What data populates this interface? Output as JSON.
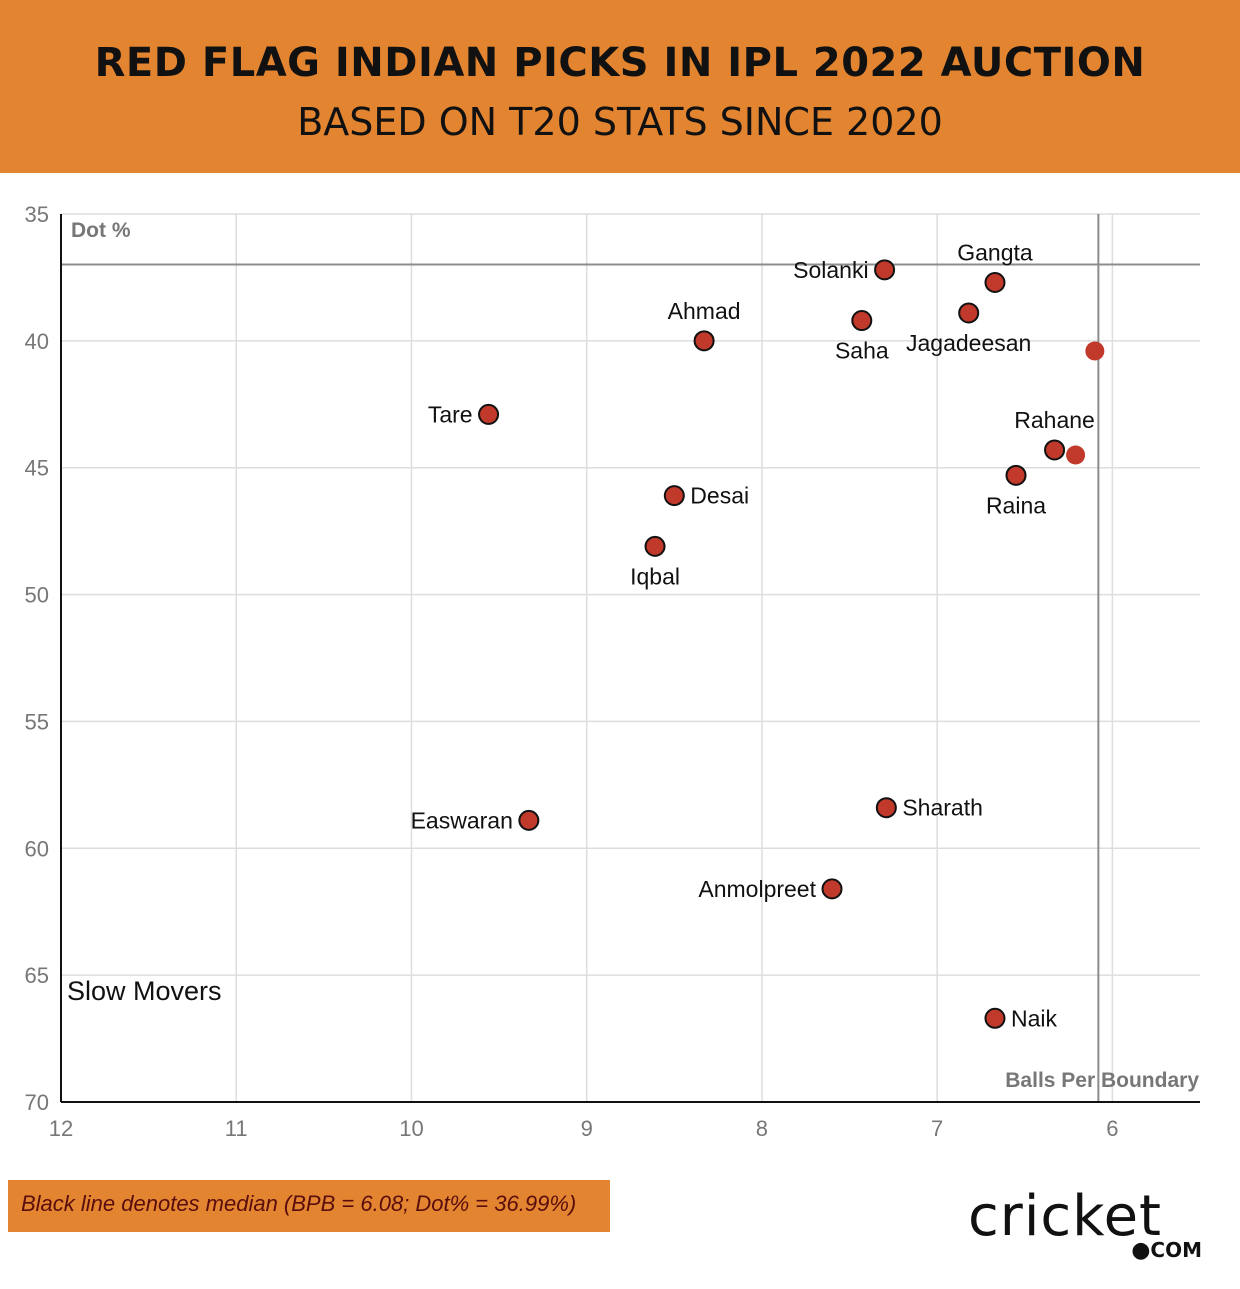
{
  "header": {
    "title": "RED FLAG INDIAN PICKS IN IPL 2022 AUCTION",
    "subtitle": "BASED ON T20 STATS SINCE 2020"
  },
  "footnote": "Black line denotes median (BPB = 6.08; Dot% = 36.99%)",
  "logo": {
    "word": "cricket",
    "suffix": "COM",
    "dot": "●"
  },
  "colors": {
    "header_bg": "#e38431",
    "point_fill": "#c0392b",
    "point_stroke": "#111111",
    "median_line": "#8c8c8c",
    "grid": "#dddddd"
  },
  "chart_data": {
    "type": "scatter",
    "x_axis": {
      "label": "Balls Per Boundary",
      "range": [
        12,
        5.5
      ],
      "reversed": true,
      "ticks": [
        "12",
        "11",
        "10",
        "9",
        "8",
        "7",
        "6"
      ],
      "tick_values": [
        12,
        11,
        10,
        9,
        8,
        7,
        6
      ]
    },
    "y_axis": {
      "label": "Dot %",
      "range": [
        35,
        70
      ],
      "reversed": true,
      "ticks": [
        "35",
        "40",
        "45",
        "50",
        "55",
        "60",
        "65",
        "70"
      ],
      "tick_values": [
        35,
        40,
        45,
        50,
        55,
        60,
        65,
        70
      ]
    },
    "grid": true,
    "median": {
      "bpb": 6.08,
      "dot": 36.99
    },
    "annotation": "Slow Movers",
    "points": [
      {
        "name": "Solanki",
        "x": 7.3,
        "y": 37.2,
        "label_pos": "left"
      },
      {
        "name": "Gangta",
        "x": 6.67,
        "y": 37.7,
        "label_pos": "above"
      },
      {
        "name": "Jagadeesan",
        "x": 6.82,
        "y": 38.9,
        "label_pos": "below"
      },
      {
        "name": "Saha",
        "x": 7.43,
        "y": 39.2,
        "label_pos": "below"
      },
      {
        "name": "Ahmad",
        "x": 8.33,
        "y": 40.0,
        "label_pos": "above"
      },
      {
        "name": "",
        "x": 6.1,
        "y": 40.4,
        "label_pos": "none"
      },
      {
        "name": "Tare",
        "x": 9.56,
        "y": 42.9,
        "label_pos": "left"
      },
      {
        "name": "Rahane",
        "x": 6.33,
        "y": 44.3,
        "label_pos": "above"
      },
      {
        "name": "",
        "x": 6.21,
        "y": 44.5,
        "label_pos": "none"
      },
      {
        "name": "Raina",
        "x": 6.55,
        "y": 45.3,
        "label_pos": "below"
      },
      {
        "name": "Desai",
        "x": 8.5,
        "y": 46.1,
        "label_pos": "right"
      },
      {
        "name": "Iqbal",
        "x": 8.61,
        "y": 48.1,
        "label_pos": "below"
      },
      {
        "name": "Sharath",
        "x": 7.29,
        "y": 58.4,
        "label_pos": "right"
      },
      {
        "name": "Easwaran",
        "x": 9.33,
        "y": 58.9,
        "label_pos": "left"
      },
      {
        "name": "Anmolpreet",
        "x": 7.6,
        "y": 61.6,
        "label_pos": "left"
      },
      {
        "name": "Naik",
        "x": 6.67,
        "y": 66.7,
        "label_pos": "right"
      }
    ]
  }
}
